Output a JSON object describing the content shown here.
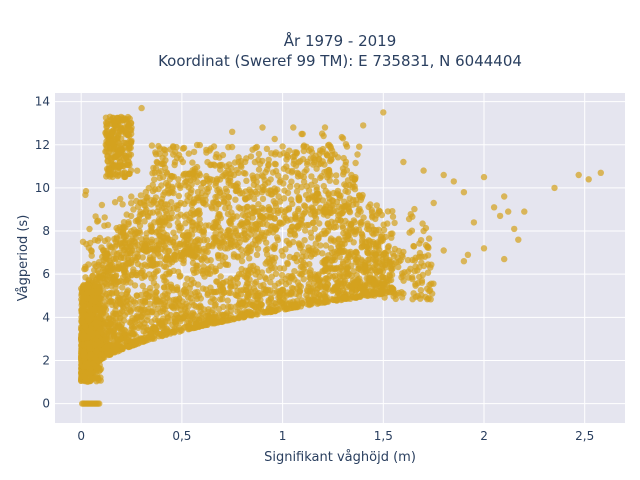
{
  "chart_data": {
    "type": "scatter",
    "title_line1": "År 1979 - 2019",
    "title_line2": "Koordinat (Sweref 99 TM): E 735831, N 6044404",
    "xlabel": "Signifikant våghöjd (m)",
    "ylabel": "Vågperiod (s)",
    "xlim": [
      -0.13,
      2.7
    ],
    "ylim": [
      -0.9,
      14.4
    ],
    "x_ticks": [
      0,
      0.5,
      1,
      1.5,
      2,
      2.5
    ],
    "x_tick_labels": [
      "0",
      "0,5",
      "1",
      "1,5",
      "2",
      "2,5"
    ],
    "y_ticks": [
      0,
      2,
      4,
      6,
      8,
      10,
      12,
      14
    ],
    "y_tick_labels": [
      "0",
      "2",
      "4",
      "6",
      "8",
      "10",
      "12",
      "14"
    ],
    "grid": true,
    "marker_color": "#d4a21f",
    "background_color": "#e5e5ef",
    "outliers": [
      {
        "x": 0.3,
        "y": 13.7
      },
      {
        "x": 1.5,
        "y": 13.5
      },
      {
        "x": 1.4,
        "y": 12.9
      },
      {
        "x": 0.75,
        "y": 12.6
      },
      {
        "x": 1.1,
        "y": 12.5
      },
      {
        "x": 1.3,
        "y": 12.3
      },
      {
        "x": 1.6,
        "y": 11.2
      },
      {
        "x": 1.7,
        "y": 10.8
      },
      {
        "x": 1.8,
        "y": 10.6
      },
      {
        "x": 1.85,
        "y": 10.3
      },
      {
        "x": 1.9,
        "y": 9.8
      },
      {
        "x": 1.95,
        "y": 8.4
      },
      {
        "x": 2.0,
        "y": 10.5
      },
      {
        "x": 2.05,
        "y": 9.1
      },
      {
        "x": 2.08,
        "y": 8.7
      },
      {
        "x": 2.12,
        "y": 8.9
      },
      {
        "x": 2.1,
        "y": 9.6
      },
      {
        "x": 2.15,
        "y": 8.1
      },
      {
        "x": 2.17,
        "y": 7.6
      },
      {
        "x": 2.2,
        "y": 8.9
      },
      {
        "x": 2.0,
        "y": 7.2
      },
      {
        "x": 1.92,
        "y": 6.9
      },
      {
        "x": 2.1,
        "y": 6.7
      },
      {
        "x": 1.9,
        "y": 6.6
      },
      {
        "x": 1.75,
        "y": 9.3
      },
      {
        "x": 1.7,
        "y": 8.0
      },
      {
        "x": 1.65,
        "y": 7.3
      },
      {
        "x": 1.8,
        "y": 7.1
      },
      {
        "x": 1.55,
        "y": 5.2
      },
      {
        "x": 1.6,
        "y": 5.1
      },
      {
        "x": 2.35,
        "y": 10.0
      },
      {
        "x": 2.47,
        "y": 10.6
      },
      {
        "x": 2.52,
        "y": 10.4
      },
      {
        "x": 2.58,
        "y": 10.7
      },
      {
        "x": 1.42,
        "y": 8.1
      },
      {
        "x": 1.3,
        "y": 10.9
      },
      {
        "x": 1.2,
        "y": 11.8
      },
      {
        "x": 0.9,
        "y": 12.8
      },
      {
        "x": 1.25,
        "y": 9.4
      },
      {
        "x": 1.45,
        "y": 7.4
      },
      {
        "x": 1.5,
        "y": 6.9
      }
    ]
  }
}
